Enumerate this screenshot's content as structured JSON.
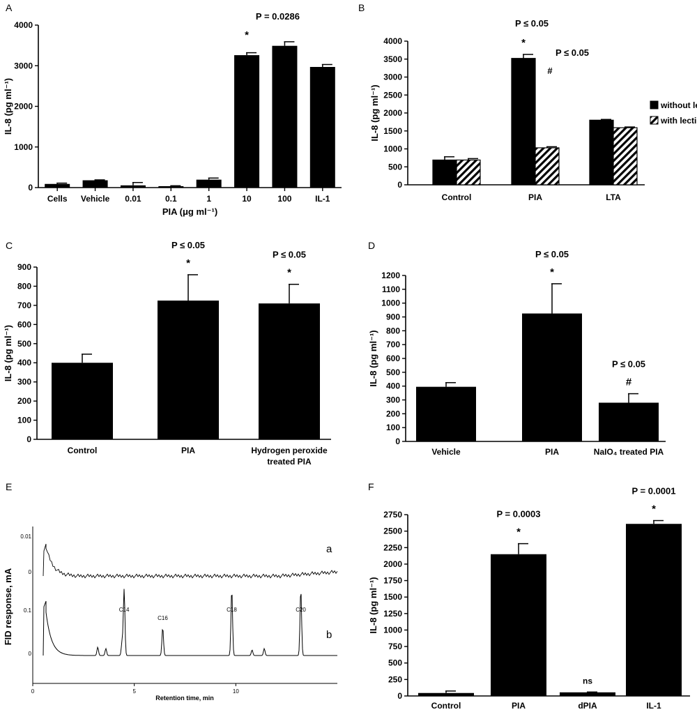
{
  "panels": [
    {
      "letter": "A",
      "chart_data": {
        "type": "bar",
        "title": "",
        "xlabel": "PIA (μg ml⁻¹)",
        "ylabel": "IL-8 (pg ml⁻¹)",
        "ylim": [
          0,
          4000
        ],
        "yticks": [
          0,
          1000,
          2000,
          3000,
          4000
        ],
        "categories": [
          "Cells",
          "Vehicle",
          "0.01",
          "0.1",
          "1",
          "10",
          "100",
          "IL-1"
        ],
        "series": [
          {
            "values": [
              90,
              180,
              55,
              35,
              195,
              3260,
              3490,
              2970
            ],
            "errors": [
              20,
              10,
              70,
              10,
              40,
              60,
              100,
              60
            ]
          }
        ],
        "annotations": [
          {
            "category": "10",
            "marker": "*",
            "ptext": ""
          },
          {
            "category": "100",
            "marker": "",
            "ptext": "P = 0.0286"
          }
        ]
      }
    },
    {
      "letter": "B",
      "chart_data": {
        "type": "bar",
        "title": "",
        "xlabel": "",
        "ylabel": "IL-8 (pg ml⁻¹)",
        "ylim": [
          0,
          4000
        ],
        "yticks": [
          0,
          500,
          1000,
          1500,
          2000,
          2500,
          3000,
          3500,
          4000
        ],
        "categories": [
          "Control",
          "PIA",
          "LTA"
        ],
        "series": [
          {
            "name": "without lectin",
            "values": [
              690,
              3520,
              1800
            ],
            "errors": [
              90,
              110,
              20
            ]
          },
          {
            "name": "with lectin",
            "values": [
              690,
              1030,
              1590
            ],
            "errors": [
              40,
              30,
              20
            ]
          }
        ],
        "legend": "right",
        "top_label": "P ≤ 0.05",
        "annotations": [
          {
            "category": "PIA",
            "series": 0,
            "text": "*"
          },
          {
            "category": "PIA",
            "series": 0,
            "text": "P ≤ 0.05"
          },
          {
            "category": "PIA",
            "series": 0,
            "text": "#"
          }
        ]
      }
    },
    {
      "letter": "C",
      "chart_data": {
        "type": "bar",
        "title": "",
        "xlabel": "",
        "ylabel": "IL-8 (pg ml⁻¹)",
        "ylim": [
          0,
          900
        ],
        "yticks": [
          0,
          100,
          200,
          300,
          400,
          500,
          600,
          700,
          800,
          900
        ],
        "categories": [
          "Control",
          "PIA",
          "Hydrogen peroxide treated PIA"
        ],
        "category_lines": [
          [
            "Control"
          ],
          [
            "PIA"
          ],
          [
            "Hydrogen peroxide",
            "treated PIA"
          ]
        ],
        "series": [
          {
            "values": [
              400,
              725,
              710
            ],
            "errors": [
              45,
              135,
              100
            ]
          }
        ],
        "annotations": [
          {
            "category": "PIA",
            "marker": "*",
            "ptext": "P ≤ 0.05"
          },
          {
            "category": "Hydrogen peroxide treated PIA",
            "marker": "*",
            "ptext": "P ≤ 0.05"
          }
        ]
      }
    },
    {
      "letter": "D",
      "chart_data": {
        "type": "bar",
        "title": "",
        "xlabel": "",
        "ylabel": "IL-8 (pg ml⁻¹)",
        "ylim": [
          0,
          1200
        ],
        "yticks": [
          0,
          100,
          200,
          300,
          400,
          500,
          600,
          700,
          800,
          900,
          1000,
          1100,
          1200
        ],
        "categories": [
          "Vehicle",
          "PIA",
          "NaIO₄ treated PIA"
        ],
        "series": [
          {
            "values": [
              395,
              925,
              280
            ],
            "errors": [
              30,
              215,
              65
            ]
          }
        ],
        "annotations": [
          {
            "category": "PIA",
            "marker": "*",
            "ptext": "P ≤ 0.05"
          },
          {
            "category": "NaIO₄ treated PIA",
            "marker": "#",
            "ptext": "P ≤ 0.05"
          }
        ]
      }
    },
    {
      "letter": "E",
      "chart_data": {
        "type": "line",
        "title": "",
        "xlabel": "Retention time, min",
        "ylabel": "FID response, mA",
        "xticks": [
          "0",
          "5",
          "10"
        ],
        "xlim": [
          0,
          15
        ],
        "trace_a": {
          "label": "a",
          "ytick": "0.01",
          "zero": "0"
        },
        "trace_b": {
          "label": "b",
          "ytick": "0.1",
          "zero": "0"
        },
        "peaks": [
          {
            "name": "C14",
            "x": 4.5
          },
          {
            "name": "C16",
            "x": 6.4
          },
          {
            "name": "C18",
            "x": 9.8
          },
          {
            "name": "C20",
            "x": 13.2
          }
        ]
      }
    },
    {
      "letter": "F",
      "chart_data": {
        "type": "bar",
        "title": "",
        "xlabel": "",
        "ylabel": "IL-8 (pg ml⁻¹)",
        "ylim": [
          0,
          2750
        ],
        "yticks": [
          0,
          250,
          500,
          750,
          1000,
          1250,
          1500,
          1750,
          2000,
          2250,
          2500,
          2750
        ],
        "categories": [
          "Control",
          "PIA",
          "dPIA",
          "IL-1"
        ],
        "series": [
          {
            "values": [
              45,
              2150,
              55,
              2610
            ],
            "errors": [
              30,
              160,
              5,
              50
            ]
          }
        ],
        "annotations": [
          {
            "category": "PIA",
            "marker": "*",
            "ptext": "P = 0.0003"
          },
          {
            "category": "dPIA",
            "marker": "ns",
            "ptext": ""
          },
          {
            "category": "IL-1",
            "marker": "*",
            "ptext": "P = 0.0001"
          }
        ]
      }
    }
  ]
}
